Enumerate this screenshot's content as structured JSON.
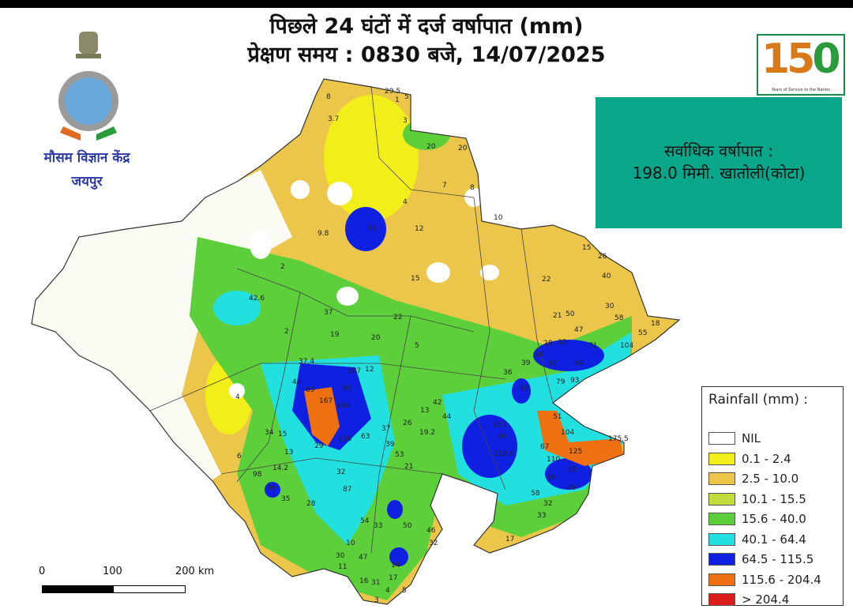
{
  "title": {
    "line1": "पिछले 24 घंटों में दर्ज वर्षापात (mm)",
    "line2": "प्रेक्षण समय : 0830 बजे, 14/07/2025"
  },
  "organization": {
    "name": "मौसम विज्ञान केंद्र",
    "city": "जयपुर"
  },
  "anniversary_logo": {
    "number": "150",
    "caption": "Years of Service to the Nation"
  },
  "max_rainfall": {
    "label": "सर्वाधिक वर्षापात :",
    "value": "198.0 मिमी. खातोली(कोटा)"
  },
  "legend": {
    "title": "Rainfall (mm) :",
    "items": [
      {
        "label": "NIL",
        "color": "#ffffff"
      },
      {
        "label": "0.1 - 2.4",
        "color": "#f2ee1a"
      },
      {
        "label": "2.5 - 10.0",
        "color": "#ecc64a"
      },
      {
        "label": "10.1 - 15.5",
        "color": "#c2dc3a"
      },
      {
        "label": "15.6 - 40.0",
        "color": "#5ccf3a"
      },
      {
        "label": "40.1 - 64.4",
        "color": "#22e0e0"
      },
      {
        "label": "64.5 - 115.5",
        "color": "#1020e0"
      },
      {
        "label": "115.6 - 204.4",
        "color": "#ee7010"
      },
      {
        "label": "> 204.4",
        "color": "#dd1c1c"
      }
    ]
  },
  "scale_bar": {
    "ticks": [
      "0",
      "100",
      "200 km"
    ]
  },
  "station_values": [
    "8",
    "29.5",
    "1",
    "5",
    "3.7",
    "3",
    "20",
    "20",
    "7",
    "8",
    "4",
    "12",
    "79",
    "10",
    "9.8",
    "2",
    "15",
    "42.6",
    "37",
    "22",
    "2",
    "19",
    "20",
    "37.4",
    "107",
    "12",
    "95",
    "167",
    "104",
    "69",
    "44",
    "5",
    "4",
    "34",
    "15",
    "136",
    "63",
    "37",
    "26",
    "19.2",
    "13",
    "42",
    "44",
    "113",
    "60",
    "122.6",
    "93",
    "63",
    "79",
    "51",
    "104",
    "125",
    "175.5",
    "67",
    "110",
    "78",
    "40",
    "58",
    "32",
    "49",
    "33",
    "17",
    "21",
    "28",
    "35",
    "64",
    "71",
    "104",
    "55",
    "18",
    "58",
    "30",
    "40",
    "26",
    "15",
    "22",
    "50",
    "47",
    "36",
    "37",
    "28",
    "39",
    "13",
    "14.2",
    "98",
    "90",
    "35",
    "28",
    "29",
    "32",
    "87",
    "54",
    "33",
    "39",
    "53",
    "21",
    "50",
    "46",
    "32",
    "6",
    "10",
    "30",
    "47",
    "11",
    "31",
    "14",
    "17",
    "16",
    "3",
    "4",
    "5"
  ]
}
